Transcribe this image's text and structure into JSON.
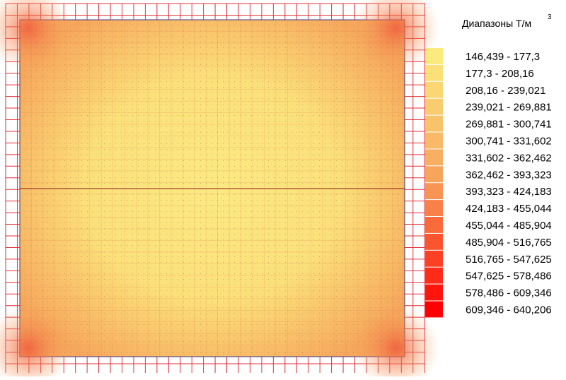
{
  "legend": {
    "title": "Диапазоны Т/м",
    "title_superscript": "3",
    "ranges": [
      "146,439 - 177,3",
      "177,3 - 208,16",
      "208,16 - 239,021",
      "239,021 - 269,881",
      "269,881 - 300,741",
      "300,741 - 331,602",
      "331,602 - 362,462",
      "362,462 - 393,323",
      "393,323 - 424,183",
      "424,183 - 455,044",
      "455,044 - 485,904",
      "485,904 - 516,765",
      "516,765 - 547,625",
      "547,625 - 578,486",
      "578,486 - 609,346",
      "609,346 - 640,206"
    ]
  }
}
